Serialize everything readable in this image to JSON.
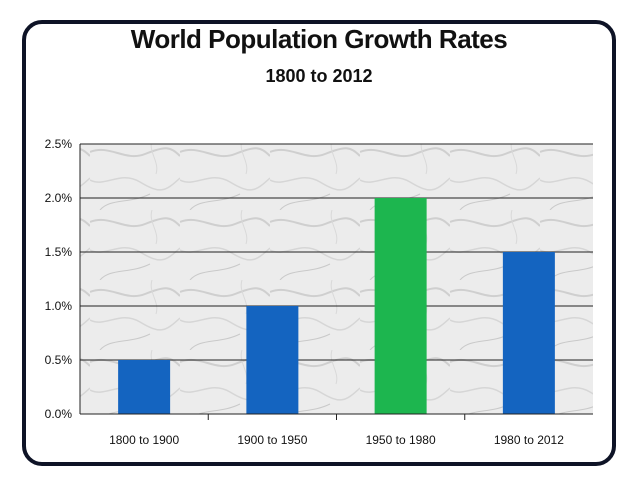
{
  "chart_data": {
    "type": "bar",
    "title": "World Population Growth Rates",
    "subtitle": "1800 to 2012",
    "xlabel": "",
    "ylabel": "",
    "categories": [
      "1800 to 1900",
      "1900 to 1950",
      "1950 to 1980",
      "1980 to 2012"
    ],
    "values": [
      0.5,
      1.0,
      2.0,
      1.5
    ],
    "value_unit": "%",
    "colors": [
      "#1464c0",
      "#1464c0",
      "#1db64f",
      "#1464c0"
    ],
    "ylim": [
      0,
      2.5
    ],
    "yticks": [
      "0.0%",
      "0.5%",
      "1.0%",
      "1.5%",
      "2.0%",
      "2.5%"
    ],
    "grid": true,
    "legend": "none"
  }
}
